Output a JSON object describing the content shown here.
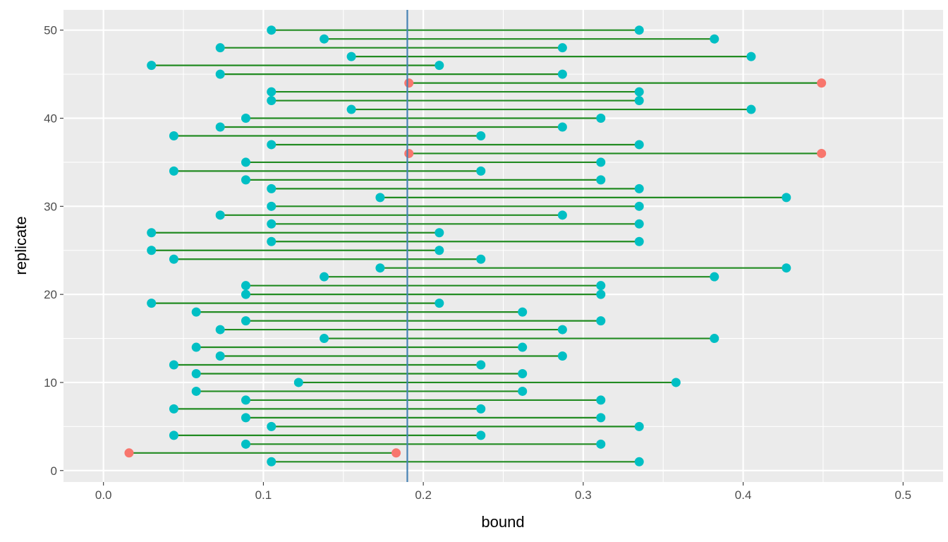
{
  "chart_data": {
    "type": "scatter",
    "subtype": "interval-dumbbell",
    "title": "",
    "xlabel": "bound",
    "ylabel": "replicate",
    "xlim": [
      -0.025,
      0.525
    ],
    "ylim": [
      -1.3,
      52.3
    ],
    "x_ticks": [
      0.0,
      0.1,
      0.2,
      0.3,
      0.4,
      0.5
    ],
    "x_tick_labels": [
      "0.0",
      "0.1",
      "0.2",
      "0.3",
      "0.4",
      "0.5"
    ],
    "y_ticks": [
      0,
      10,
      20,
      30,
      40,
      50
    ],
    "y_tick_labels": [
      "0",
      "10",
      "20",
      "30",
      "40",
      "50"
    ],
    "grid": true,
    "legend": "none",
    "reference_line": {
      "x": 0.19,
      "color": "#4682b4"
    },
    "colors": {
      "panel_bg": "#ebebeb",
      "grid": "#ffffff",
      "segment": "#228b22",
      "covers": "#00bfc4",
      "misses": "#f8766d",
      "tick_text": "#4d4d4d",
      "tick_mark": "#333333"
    },
    "intervals": [
      {
        "replicate": 1,
        "lower": 0.105,
        "upper": 0.335,
        "covers": true
      },
      {
        "replicate": 2,
        "lower": 0.016,
        "upper": 0.183,
        "covers": false
      },
      {
        "replicate": 3,
        "lower": 0.089,
        "upper": 0.311,
        "covers": true
      },
      {
        "replicate": 4,
        "lower": 0.044,
        "upper": 0.236,
        "covers": true
      },
      {
        "replicate": 5,
        "lower": 0.105,
        "upper": 0.335,
        "covers": true
      },
      {
        "replicate": 6,
        "lower": 0.089,
        "upper": 0.311,
        "covers": true
      },
      {
        "replicate": 7,
        "lower": 0.044,
        "upper": 0.236,
        "covers": true
      },
      {
        "replicate": 8,
        "lower": 0.089,
        "upper": 0.311,
        "covers": true
      },
      {
        "replicate": 9,
        "lower": 0.058,
        "upper": 0.262,
        "covers": true
      },
      {
        "replicate": 10,
        "lower": 0.122,
        "upper": 0.358,
        "covers": true
      },
      {
        "replicate": 11,
        "lower": 0.058,
        "upper": 0.262,
        "covers": true
      },
      {
        "replicate": 12,
        "lower": 0.044,
        "upper": 0.236,
        "covers": true
      },
      {
        "replicate": 13,
        "lower": 0.073,
        "upper": 0.287,
        "covers": true
      },
      {
        "replicate": 14,
        "lower": 0.058,
        "upper": 0.262,
        "covers": true
      },
      {
        "replicate": 15,
        "lower": 0.138,
        "upper": 0.382,
        "covers": true
      },
      {
        "replicate": 16,
        "lower": 0.073,
        "upper": 0.287,
        "covers": true
      },
      {
        "replicate": 17,
        "lower": 0.089,
        "upper": 0.311,
        "covers": true
      },
      {
        "replicate": 18,
        "lower": 0.058,
        "upper": 0.262,
        "covers": true
      },
      {
        "replicate": 19,
        "lower": 0.03,
        "upper": 0.21,
        "covers": true
      },
      {
        "replicate": 20,
        "lower": 0.089,
        "upper": 0.311,
        "covers": true
      },
      {
        "replicate": 21,
        "lower": 0.089,
        "upper": 0.311,
        "covers": true
      },
      {
        "replicate": 22,
        "lower": 0.138,
        "upper": 0.382,
        "covers": true
      },
      {
        "replicate": 23,
        "lower": 0.173,
        "upper": 0.427,
        "covers": true
      },
      {
        "replicate": 24,
        "lower": 0.044,
        "upper": 0.236,
        "covers": true
      },
      {
        "replicate": 25,
        "lower": 0.03,
        "upper": 0.21,
        "covers": true
      },
      {
        "replicate": 26,
        "lower": 0.105,
        "upper": 0.335,
        "covers": true
      },
      {
        "replicate": 27,
        "lower": 0.03,
        "upper": 0.21,
        "covers": true
      },
      {
        "replicate": 28,
        "lower": 0.105,
        "upper": 0.335,
        "covers": true
      },
      {
        "replicate": 29,
        "lower": 0.073,
        "upper": 0.287,
        "covers": true
      },
      {
        "replicate": 30,
        "lower": 0.105,
        "upper": 0.335,
        "covers": true
      },
      {
        "replicate": 31,
        "lower": 0.173,
        "upper": 0.427,
        "covers": true
      },
      {
        "replicate": 32,
        "lower": 0.105,
        "upper": 0.335,
        "covers": true
      },
      {
        "replicate": 33,
        "lower": 0.089,
        "upper": 0.311,
        "covers": true
      },
      {
        "replicate": 34,
        "lower": 0.044,
        "upper": 0.236,
        "covers": true
      },
      {
        "replicate": 35,
        "lower": 0.089,
        "upper": 0.311,
        "covers": true
      },
      {
        "replicate": 36,
        "lower": 0.191,
        "upper": 0.449,
        "covers": false
      },
      {
        "replicate": 37,
        "lower": 0.105,
        "upper": 0.335,
        "covers": true
      },
      {
        "replicate": 38,
        "lower": 0.044,
        "upper": 0.236,
        "covers": true
      },
      {
        "replicate": 39,
        "lower": 0.073,
        "upper": 0.287,
        "covers": true
      },
      {
        "replicate": 40,
        "lower": 0.089,
        "upper": 0.311,
        "covers": true
      },
      {
        "replicate": 41,
        "lower": 0.155,
        "upper": 0.405,
        "covers": true
      },
      {
        "replicate": 42,
        "lower": 0.105,
        "upper": 0.335,
        "covers": true
      },
      {
        "replicate": 43,
        "lower": 0.105,
        "upper": 0.335,
        "covers": true
      },
      {
        "replicate": 44,
        "lower": 0.191,
        "upper": 0.449,
        "covers": false
      },
      {
        "replicate": 45,
        "lower": 0.073,
        "upper": 0.287,
        "covers": true
      },
      {
        "replicate": 46,
        "lower": 0.03,
        "upper": 0.21,
        "covers": true
      },
      {
        "replicate": 47,
        "lower": 0.155,
        "upper": 0.405,
        "covers": true
      },
      {
        "replicate": 48,
        "lower": 0.073,
        "upper": 0.287,
        "covers": true
      },
      {
        "replicate": 49,
        "lower": 0.138,
        "upper": 0.382,
        "covers": true
      },
      {
        "replicate": 50,
        "lower": 0.105,
        "upper": 0.335,
        "covers": true
      }
    ]
  }
}
